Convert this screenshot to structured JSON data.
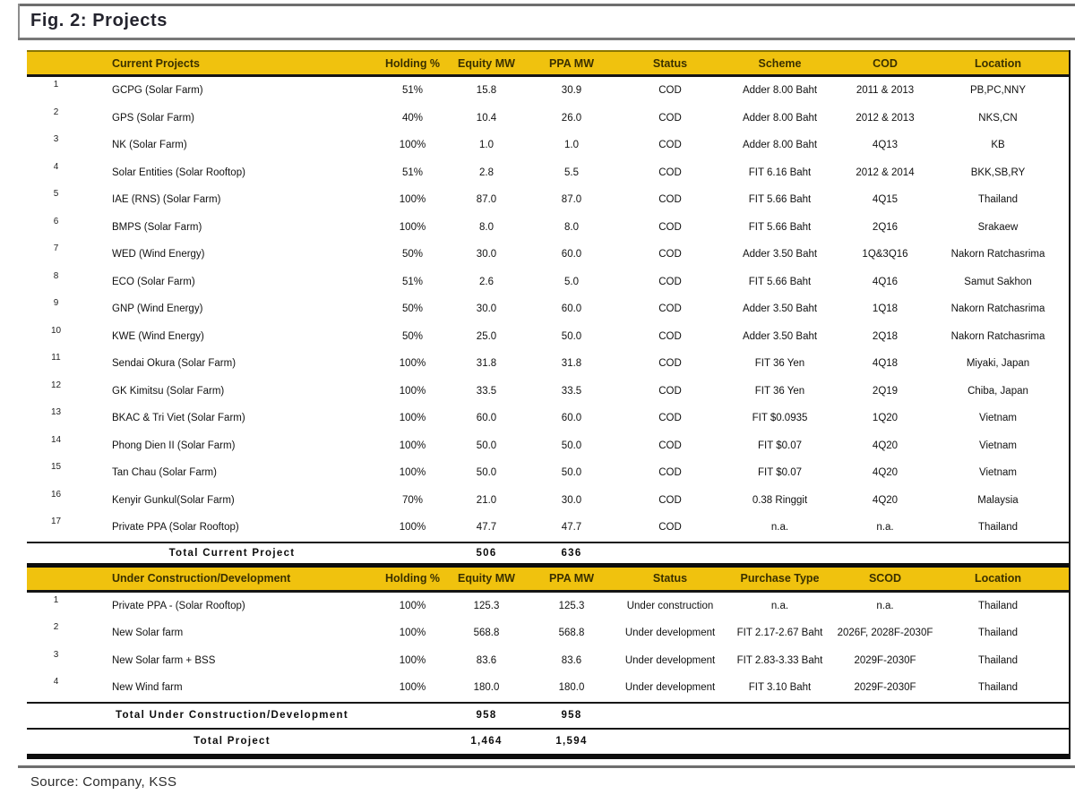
{
  "figure": {
    "title": "Fig. 2: Projects",
    "source": "Source: Company, KSS"
  },
  "colors": {
    "header_bg": "#F0C20E",
    "header_text": "#3A3000"
  },
  "table1": {
    "headers": [
      "Current Projects",
      "Holding %",
      "Equity MW",
      "PPA MW",
      "Status",
      "Scheme",
      "COD",
      "Location"
    ],
    "rows": [
      {
        "no": "1",
        "name": "GCPG (Solar Farm)",
        "holding": "51%",
        "equity": "15.8",
        "ppa": "30.9",
        "status": "COD",
        "scheme": "Adder 8.00 Baht",
        "cod": "2011 & 2013",
        "location": "PB,PC,NNY"
      },
      {
        "no": "2",
        "name": "GPS (Solar Farm)",
        "holding": "40%",
        "equity": "10.4",
        "ppa": "26.0",
        "status": "COD",
        "scheme": "Adder 8.00 Baht",
        "cod": "2012 & 2013",
        "location": "NKS,CN"
      },
      {
        "no": "3",
        "name": "NK (Solar Farm)",
        "holding": "100%",
        "equity": "1.0",
        "ppa": "1.0",
        "status": "COD",
        "scheme": "Adder 8.00 Baht",
        "cod": "4Q13",
        "location": "KB"
      },
      {
        "no": "4",
        "name": "Solar Entities (Solar Rooftop)",
        "holding": "51%",
        "equity": "2.8",
        "ppa": "5.5",
        "status": "COD",
        "scheme": "FIT 6.16 Baht",
        "cod": "2012 & 2014",
        "location": "BKK,SB,RY"
      },
      {
        "no": "5",
        "name": "IAE (RNS) (Solar Farm)",
        "holding": "100%",
        "equity": "87.0",
        "ppa": "87.0",
        "status": "COD",
        "scheme": "FIT 5.66 Baht",
        "cod": "4Q15",
        "location": "Thailand"
      },
      {
        "no": "6",
        "name": "BMPS (Solar Farm)",
        "holding": "100%",
        "equity": "8.0",
        "ppa": "8.0",
        "status": "COD",
        "scheme": "FIT 5.66 Baht",
        "cod": "2Q16",
        "location": "Srakaew"
      },
      {
        "no": "7",
        "name": "WED (Wind Energy)",
        "holding": "50%",
        "equity": "30.0",
        "ppa": "60.0",
        "status": "COD",
        "scheme": "Adder 3.50 Baht",
        "cod": "1Q&3Q16",
        "location": "Nakorn Ratchasrima"
      },
      {
        "no": "8",
        "name": "ECO (Solar Farm)",
        "holding": "51%",
        "equity": "2.6",
        "ppa": "5.0",
        "status": "COD",
        "scheme": "FIT 5.66 Baht",
        "cod": "4Q16",
        "location": "Samut Sakhon"
      },
      {
        "no": "9",
        "name": "GNP (Wind Energy)",
        "holding": "50%",
        "equity": "30.0",
        "ppa": "60.0",
        "status": "COD",
        "scheme": "Adder 3.50 Baht",
        "cod": "1Q18",
        "location": "Nakorn Ratchasrima"
      },
      {
        "no": "10",
        "name": "KWE (Wind Energy)",
        "holding": "50%",
        "equity": "25.0",
        "ppa": "50.0",
        "status": "COD",
        "scheme": "Adder 3.50 Baht",
        "cod": "2Q18",
        "location": "Nakorn Ratchasrima"
      },
      {
        "no": "11",
        "name": "Sendai Okura (Solar Farm)",
        "holding": "100%",
        "equity": "31.8",
        "ppa": "31.8",
        "status": "COD",
        "scheme": "FIT 36 Yen",
        "cod": "4Q18",
        "location": "Miyaki, Japan"
      },
      {
        "no": "12",
        "name": "GK Kimitsu (Solar Farm)",
        "holding": "100%",
        "equity": "33.5",
        "ppa": "33.5",
        "status": "COD",
        "scheme": "FIT 36 Yen",
        "cod": "2Q19",
        "location": "Chiba, Japan"
      },
      {
        "no": "13",
        "name": "BKAC & Tri Viet (Solar Farm)",
        "holding": "100%",
        "equity": "60.0",
        "ppa": "60.0",
        "status": "COD",
        "scheme": "FIT $0.0935",
        "cod": "1Q20",
        "location": "Vietnam"
      },
      {
        "no": "14",
        "name": "Phong Dien II (Solar Farm)",
        "holding": "100%",
        "equity": "50.0",
        "ppa": "50.0",
        "status": "COD",
        "scheme": "FIT $0.07",
        "cod": "4Q20",
        "location": "Vietnam"
      },
      {
        "no": "15",
        "name": "Tan Chau (Solar Farm)",
        "holding": "100%",
        "equity": "50.0",
        "ppa": "50.0",
        "status": "COD",
        "scheme": "FIT $0.07",
        "cod": "4Q20",
        "location": "Vietnam"
      },
      {
        "no": "16",
        "name": "Kenyir Gunkul(Solar Farm)",
        "holding": "70%",
        "equity": "21.0",
        "ppa": "30.0",
        "status": "COD",
        "scheme": "0.38 Ringgit",
        "cod": "4Q20",
        "location": "Malaysia"
      },
      {
        "no": "17",
        "name": "Private PPA (Solar Rooftop)",
        "holding": "100%",
        "equity": "47.7",
        "ppa": "47.7",
        "status": "COD",
        "scheme": "n.a.",
        "cod": "n.a.",
        "location": "Thailand"
      }
    ],
    "total": {
      "label": "Total Current Project",
      "equity": "506",
      "ppa": "636"
    }
  },
  "table2": {
    "headers": [
      "Under Construction/Development",
      "Holding %",
      "Equity MW",
      "PPA MW",
      "Status",
      "Purchase Type",
      "SCOD",
      "Location"
    ],
    "rows": [
      {
        "no": "1",
        "name": "Private PPA - (Solar Rooftop)",
        "holding": "100%",
        "equity": "125.3",
        "ppa": "125.3",
        "status": "Under construction",
        "scheme": "n.a.",
        "cod": "n.a.",
        "location": "Thailand"
      },
      {
        "no": "2",
        "name": "New Solar farm",
        "holding": "100%",
        "equity": "568.8",
        "ppa": "568.8",
        "status": "Under development",
        "scheme": "FIT 2.17-2.67 Baht",
        "cod": "2026F, 2028F-2030F",
        "location": "Thailand"
      },
      {
        "no": "3",
        "name": "New Solar farm + BSS",
        "holding": "100%",
        "equity": "83.6",
        "ppa": "83.6",
        "status": "Under development",
        "scheme": "FIT 2.83-3.33 Baht",
        "cod": "2029F-2030F",
        "location": "Thailand"
      },
      {
        "no": "4",
        "name": "New Wind farm",
        "holding": "100%",
        "equity": "180.0",
        "ppa": "180.0",
        "status": "Under development",
        "scheme": "FIT 3.10 Baht",
        "cod": "2029F-2030F",
        "location": "Thailand"
      }
    ],
    "total": {
      "label": "Total Under Construction/Development",
      "equity": "958",
      "ppa": "958"
    }
  },
  "grand_total": {
    "label": "Total Project",
    "equity": "1,464",
    "ppa": "1,594"
  }
}
